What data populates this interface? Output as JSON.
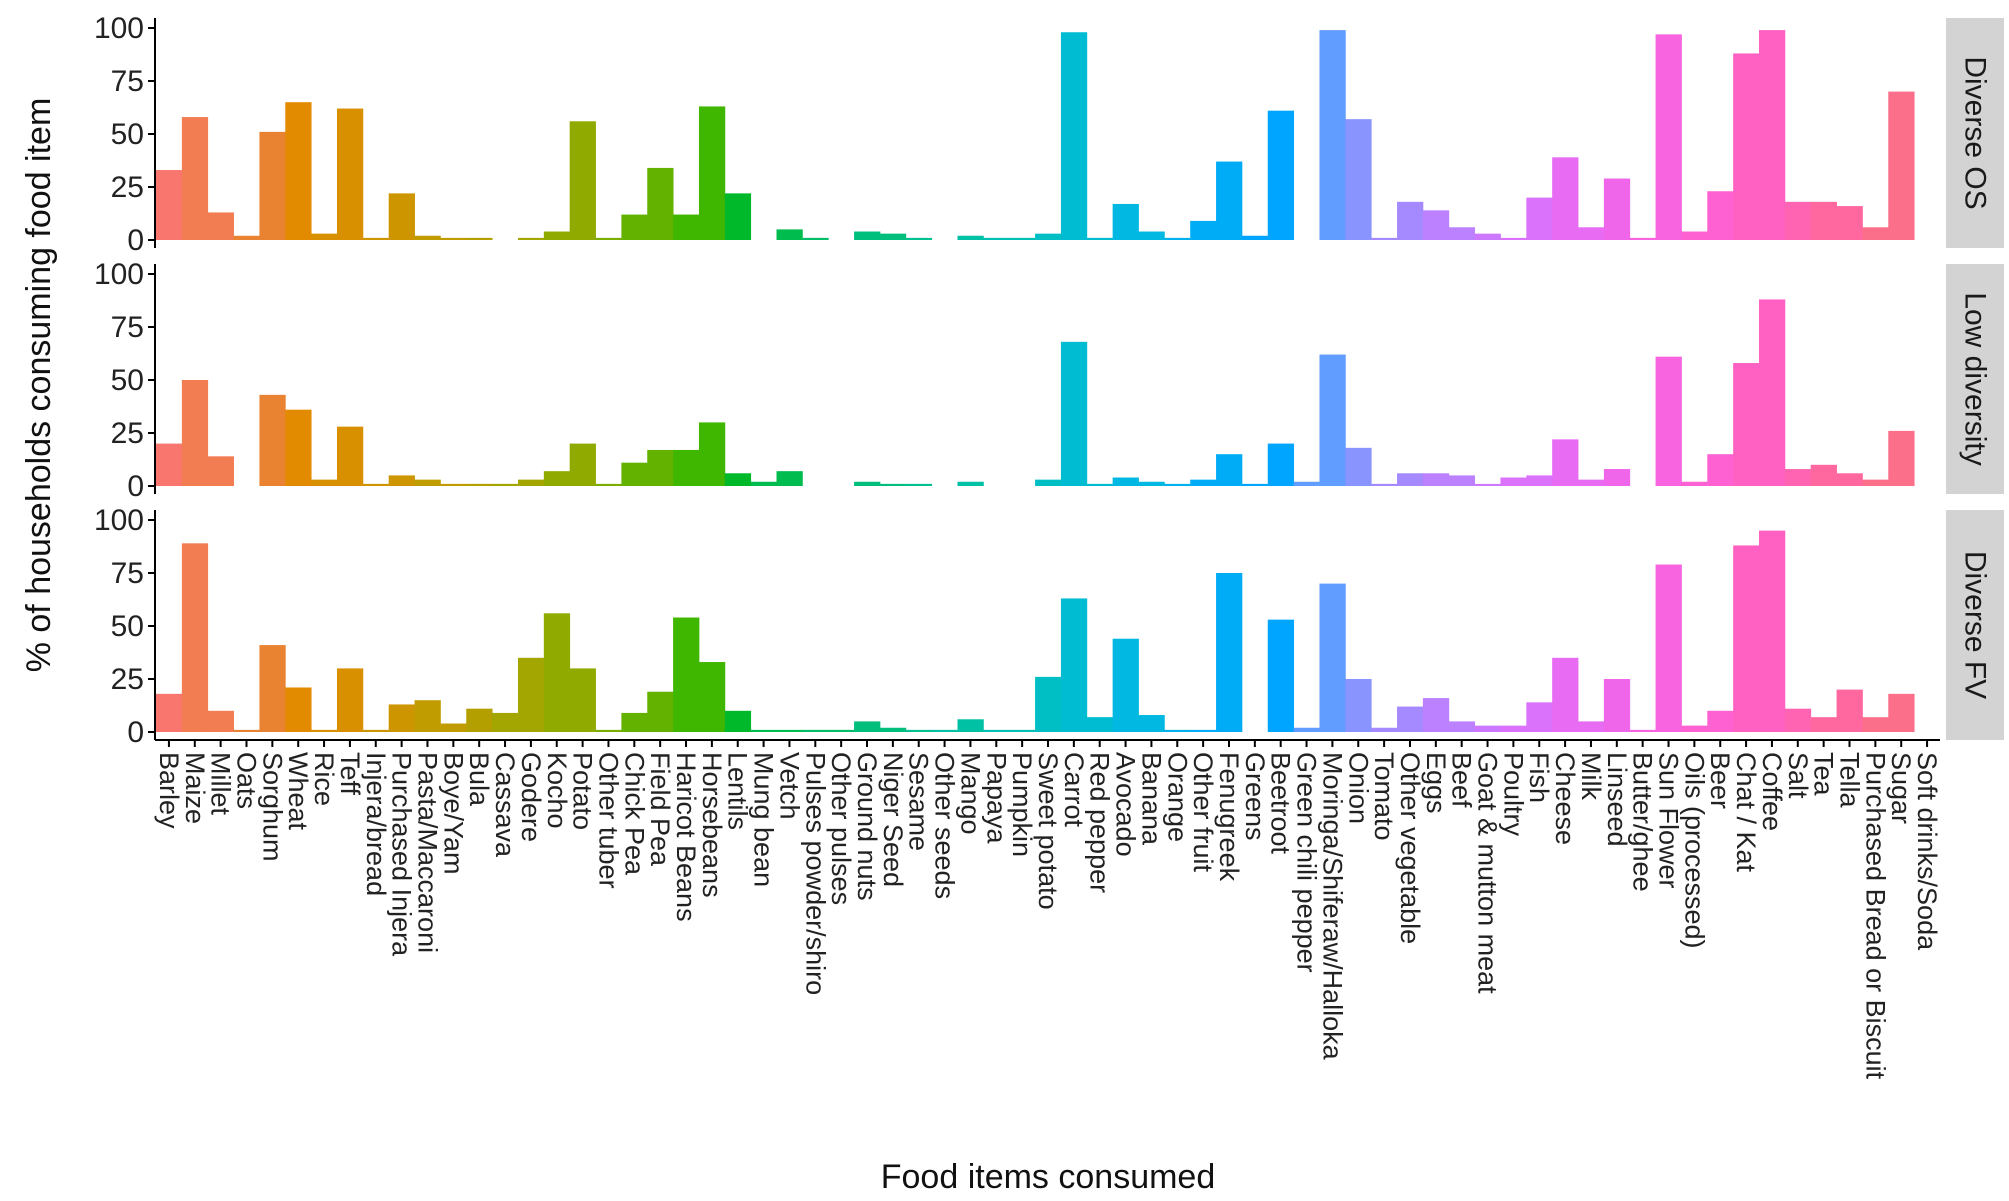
{
  "chart_data": {
    "type": "bar",
    "xlabel": "Food items consumed",
    "ylabel": "% of households consuming food item",
    "ylim": [
      0,
      100
    ],
    "yticks": [
      0,
      25,
      50,
      75,
      100
    ],
    "grid": false,
    "legend": "none",
    "strip_color": "#d3d3d3",
    "axis_color": "#000000",
    "categories": [
      "Barley",
      "Maize",
      "Millet",
      "Oats",
      "Sorghum",
      "Wheat",
      "Rice",
      "Teff",
      "Injera/bread",
      "Purchased Injera",
      "Pasta/Maccaroni",
      "Boye/Yam",
      "Bula",
      "Cassava",
      "Godere",
      "Kocho",
      "Potato",
      "Other tuber",
      "Chick Pea",
      "Field Pea",
      "Haricot Beans",
      "Horsebeans",
      "Lentils",
      "Mung bean",
      "Vetch",
      "Pulses powder/shiro",
      "Other pulses",
      "Ground nuts",
      "Niger Seed",
      "Sesame",
      "Other seeds",
      "Mango",
      "Papaya",
      "Pumpkin",
      "Sweet potato",
      "Carrot",
      "Red pepper",
      "Avocado",
      "Banana",
      "Orange",
      "Other fruit",
      "Fenugreek",
      "Greens",
      "Beetroot",
      "Green chili pepper",
      "Moringa/Shiferaw/Halloka",
      "Onion",
      "Tomato",
      "Other vegetable",
      "Eggs",
      "Beef",
      "Goat & mutton meat",
      "Poultry",
      "Fish",
      "Cheese",
      "Milk",
      "Linseed",
      "Butter/ghee",
      "Sun Flower",
      "Oils (processed)",
      "Beer",
      "Chat / Kat",
      "Coffee",
      "Salt",
      "Tea",
      "Tella",
      "Purchased Bread or Biscuit",
      "Sugar",
      "Soft drinks/Soda"
    ],
    "colors": [
      "#F8766D",
      "#F27D52",
      "#EA8331",
      "#E28A00",
      "#D89000",
      "#CD9600",
      "#C19C00",
      "#B3A000",
      "#A3A500",
      "#91AA00",
      "#7CAE00",
      "#64B200",
      "#3FB600",
      "#00B92A",
      "#00BB4E",
      "#00BD67",
      "#00BF7D",
      "#00C091",
      "#00C1A3",
      "#00C0B4",
      "#00BFC4",
      "#00BCD3",
      "#00B8E1",
      "#00B2EC",
      "#00ACF6",
      "#00A5FF",
      "#619CFF",
      "#8A94FF",
      "#A58AFF",
      "#BB81FF",
      "#CD79FF",
      "#DB72FB",
      "#E76BF3",
      "#F066EA",
      "#F863DF",
      "#FD61D2",
      "#FF61C3",
      "#FF64B2",
      "#FF689F",
      "#FC6F8B",
      "#F8766D"
    ],
    "panels": [
      {
        "label": "Diverse OS",
        "values": [
          33,
          58,
          13,
          2,
          51,
          65,
          3,
          62,
          1,
          22,
          2,
          1,
          1,
          0,
          1,
          4,
          56,
          1,
          12,
          34,
          12,
          63,
          22,
          0,
          5,
          1,
          0,
          4,
          3,
          1,
          0,
          2,
          1,
          1,
          3,
          98,
          1,
          17,
          4,
          1,
          9,
          37,
          2,
          61,
          0,
          99,
          57,
          1,
          18,
          14,
          6,
          3,
          1,
          20,
          39,
          6,
          29,
          1,
          97,
          4,
          23,
          88,
          99,
          18,
          18,
          16,
          6,
          70,
          0
        ]
      },
      {
        "label": "Low diversity",
        "values": [
          20,
          50,
          14,
          0,
          43,
          36,
          3,
          28,
          1,
          5,
          3,
          1,
          1,
          1,
          3,
          7,
          20,
          1,
          11,
          17,
          17,
          30,
          6,
          2,
          7,
          0,
          0,
          2,
          1,
          1,
          0,
          2,
          0,
          0,
          3,
          68,
          1,
          4,
          2,
          1,
          3,
          15,
          1,
          20,
          2,
          62,
          18,
          1,
          6,
          6,
          5,
          1,
          4,
          5,
          22,
          3,
          8,
          0,
          61,
          2,
          15,
          58,
          88,
          8,
          10,
          6,
          3,
          26,
          0
        ]
      },
      {
        "label": "Diverse FV",
        "values": [
          18,
          89,
          10,
          1,
          41,
          21,
          1,
          30,
          1,
          13,
          15,
          4,
          11,
          9,
          35,
          56,
          30,
          1,
          9,
          19,
          54,
          33,
          10,
          1,
          1,
          1,
          1,
          5,
          2,
          1,
          1,
          6,
          1,
          1,
          26,
          63,
          7,
          44,
          8,
          1,
          1,
          75,
          0,
          53,
          2,
          70,
          25,
          2,
          12,
          16,
          5,
          3,
          3,
          14,
          35,
          5,
          25,
          1,
          79,
          3,
          10,
          88,
          95,
          11,
          7,
          20,
          7,
          18,
          0
        ]
      }
    ]
  }
}
